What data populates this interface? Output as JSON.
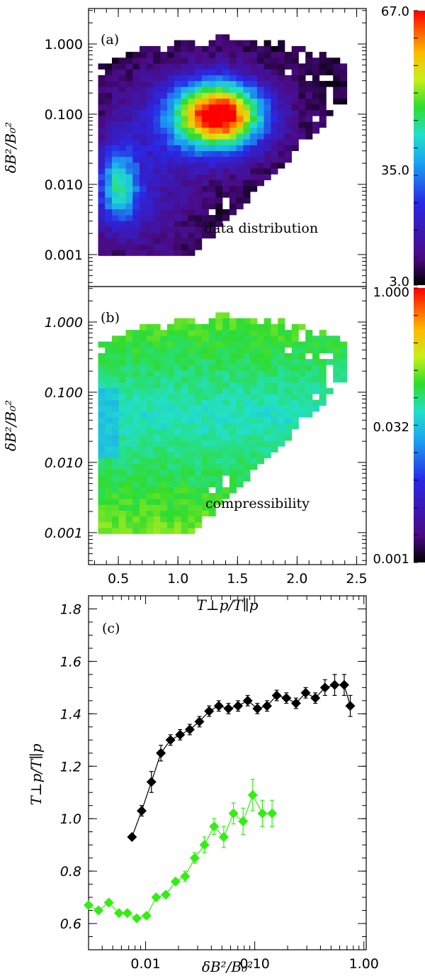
{
  "chart_data": [
    {
      "type": "heatmap",
      "panel_label": "(a)",
      "annotation": "data distribution",
      "ylabel": "δB²/B₀²",
      "y_scale": "log",
      "ylim": [
        0.00035,
        3.2
      ],
      "y_ticks": [
        {
          "value": 0.001,
          "label": "0.001"
        },
        {
          "value": 0.01,
          "label": "0.010"
        },
        {
          "value": 0.1,
          "label": "0.100"
        },
        {
          "value": 1.0,
          "label": "1.000"
        }
      ],
      "xlim": [
        0.25,
        2.58
      ],
      "colorbar": {
        "min_label": "3.0",
        "mid_label": "35.0",
        "max_label": "67.0",
        "scale": "linear"
      },
      "blobs": [
        {
          "x": 1.35,
          "y": 0.1,
          "sx": 0.25,
          "sy": 0.32,
          "amp": 60
        },
        {
          "x": 1.15,
          "y": 0.08,
          "sx": 0.45,
          "sy": 0.5,
          "amp": 18
        },
        {
          "x": 0.5,
          "y": 0.01,
          "sx": 0.12,
          "sy": 0.38,
          "amp": 30
        },
        {
          "x": 0.7,
          "y": 0.005,
          "sx": 0.3,
          "sy": 0.55,
          "amp": 10
        }
      ]
    },
    {
      "type": "heatmap",
      "panel_label": "(b)",
      "annotation": "compressibility",
      "ylabel": "δB²/B₀²",
      "xlabel": "T⊥p/T∥p",
      "y_scale": "log",
      "ylim": [
        0.00035,
        3.2
      ],
      "y_ticks": [
        {
          "value": 0.001,
          "label": "0.001"
        },
        {
          "value": 0.01,
          "label": "0.010"
        },
        {
          "value": 0.1,
          "label": "0.100"
        },
        {
          "value": 1.0,
          "label": "1.000"
        }
      ],
      "xlim": [
        0.25,
        2.58
      ],
      "x_ticks": [
        {
          "value": 0.5,
          "label": "0.5"
        },
        {
          "value": 1.0,
          "label": "1.0"
        },
        {
          "value": 1.5,
          "label": "1.5"
        },
        {
          "value": 2.0,
          "label": "2.0"
        },
        {
          "value": 2.5,
          "label": "2.5"
        }
      ],
      "colorbar": {
        "min_label": "0.001",
        "mid_label": "0.032",
        "max_label": "1.000",
        "scale": "log"
      }
    },
    {
      "type": "line",
      "panel_label": "(c)",
      "xlabel": "δB²/B₀²",
      "ylabel": "T⊥p/T∥p",
      "x_scale": "log",
      "xlim": [
        0.003,
        1.05
      ],
      "ylim": [
        0.5,
        1.85
      ],
      "x_ticks": [
        {
          "value": 0.01,
          "label": "0.01"
        },
        {
          "value": 0.1,
          "label": "0.10"
        },
        {
          "value": 1.0,
          "label": "1.00"
        }
      ],
      "y_ticks": [
        {
          "value": 0.6,
          "label": "0.6"
        },
        {
          "value": 0.8,
          "label": "0.8"
        },
        {
          "value": 1.0,
          "label": "1.0"
        },
        {
          "value": 1.2,
          "label": "1.2"
        },
        {
          "value": 1.4,
          "label": "1.4"
        },
        {
          "value": 1.6,
          "label": "1.6"
        },
        {
          "value": 1.8,
          "label": "1.8"
        }
      ],
      "series": [
        {
          "name": "black",
          "color": "#000000",
          "x": [
            0.0075,
            0.0092,
            0.0113,
            0.0138,
            0.0169,
            0.0207,
            0.0254,
            0.0311,
            0.0382,
            0.0468,
            0.0574,
            0.0703,
            0.0862,
            0.1057,
            0.1296,
            0.1589,
            0.1948,
            0.2388,
            0.2928,
            0.359,
            0.44,
            0.54,
            0.66,
            0.75
          ],
          "y": [
            0.93,
            1.03,
            1.14,
            1.25,
            1.3,
            1.32,
            1.34,
            1.37,
            1.41,
            1.43,
            1.42,
            1.43,
            1.45,
            1.42,
            1.43,
            1.47,
            1.46,
            1.44,
            1.48,
            1.46,
            1.5,
            1.51,
            1.51,
            1.43
          ],
          "err": [
            0.01,
            0.02,
            0.04,
            0.03,
            0.02,
            0.02,
            0.02,
            0.02,
            0.02,
            0.02,
            0.02,
            0.02,
            0.02,
            0.02,
            0.02,
            0.02,
            0.02,
            0.02,
            0.02,
            0.02,
            0.03,
            0.04,
            0.04,
            0.04
          ]
        },
        {
          "name": "green",
          "color": "#33ee11",
          "x": [
            0.003,
            0.0037,
            0.0046,
            0.0057,
            0.0068,
            0.0083,
            0.0102,
            0.0125,
            0.0153,
            0.0188,
            0.023,
            0.0282,
            0.0346,
            0.0424,
            0.052,
            0.0638,
            0.0782,
            0.0958,
            0.1175,
            0.1441
          ],
          "y": [
            0.67,
            0.65,
            0.68,
            0.64,
            0.64,
            0.62,
            0.63,
            0.7,
            0.71,
            0.76,
            0.78,
            0.85,
            0.9,
            0.97,
            0.93,
            1.02,
            0.99,
            1.09,
            1.02,
            1.02
          ],
          "err": [
            0.01,
            0.01,
            0.01,
            0.01,
            0.01,
            0.01,
            0.01,
            0.01,
            0.01,
            0.01,
            0.02,
            0.02,
            0.03,
            0.03,
            0.04,
            0.04,
            0.05,
            0.06,
            0.05,
            0.05
          ]
        }
      ]
    }
  ]
}
